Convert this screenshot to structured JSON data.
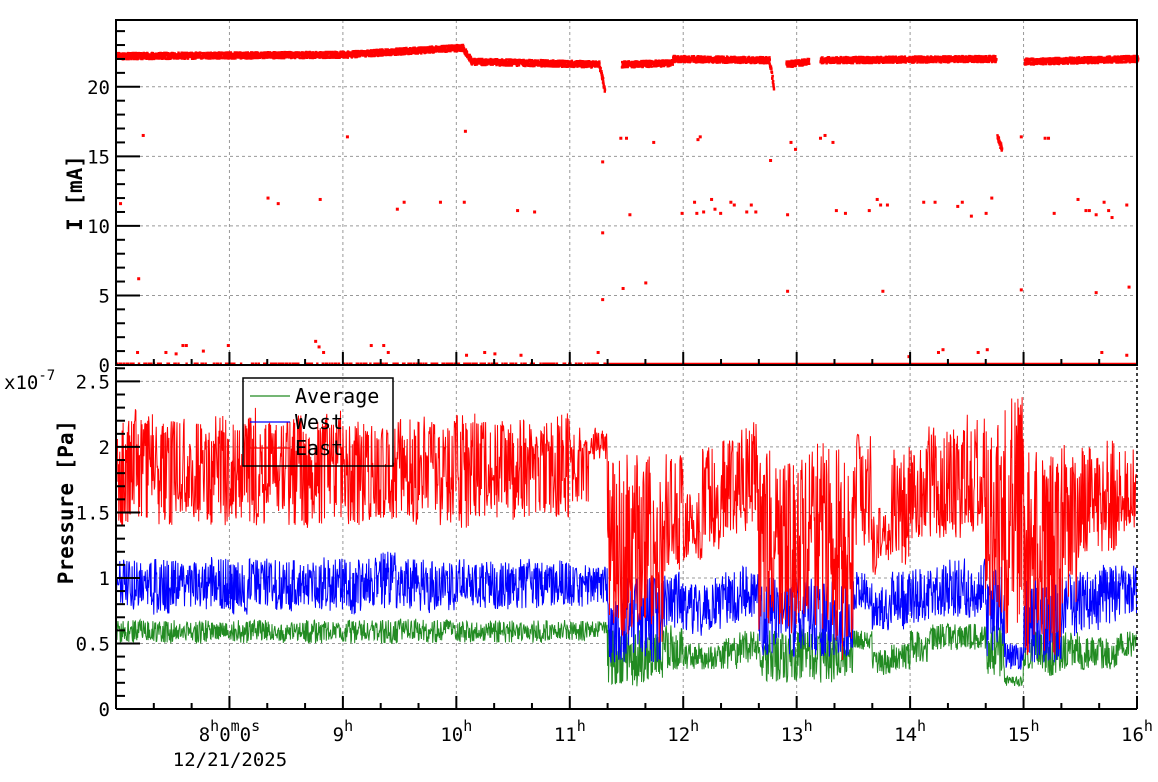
{
  "chart_data": [
    {
      "panel": "top",
      "type": "scatter",
      "ylabel": "I [mA]",
      "xlim_hours": [
        7,
        16
      ],
      "ylim": [
        0,
        24.8
      ],
      "yticks": [
        "0",
        "5",
        "10",
        "15",
        "20"
      ],
      "ytick_values": [
        0,
        5,
        10,
        15,
        20
      ],
      "grid": true,
      "color": "#ff0000",
      "main_segments": [
        [
          7.0,
          9.0,
          22.2,
          22.3
        ],
        [
          9.0,
          10.05,
          22.3,
          22.8
        ],
        [
          10.05,
          10.12,
          22.8,
          21.9
        ],
        [
          10.12,
          11.25,
          21.8,
          21.6
        ],
        [
          11.25,
          11.3,
          21.6,
          19.8
        ],
        [
          11.45,
          11.9,
          21.6,
          21.7
        ],
        [
          11.9,
          12.75,
          22.0,
          21.9
        ],
        [
          12.75,
          12.79,
          21.9,
          20.0
        ],
        [
          12.9,
          13.1,
          21.6,
          21.8
        ],
        [
          13.2,
          14.75,
          21.9,
          22.0
        ],
        [
          14.76,
          14.8,
          16.4,
          15.5
        ],
        [
          15.0,
          16.0,
          21.8,
          22.0
        ]
      ],
      "zero_segments": [
        [
          7.0,
          11.3,
          "sparse"
        ],
        [
          11.3,
          16.0,
          "dense"
        ]
      ],
      "points": [
        [
          7.04,
          11.6
        ],
        [
          7.2,
          6.2
        ],
        [
          7.24,
          16.5
        ],
        [
          8.34,
          12.0
        ],
        [
          8.43,
          11.6
        ],
        [
          8.8,
          11.9
        ],
        [
          9.04,
          16.4
        ],
        [
          9.48,
          11.2
        ],
        [
          9.54,
          11.7
        ],
        [
          9.86,
          11.7
        ],
        [
          10.07,
          11.7
        ],
        [
          10.08,
          16.8
        ],
        [
          10.54,
          11.1
        ],
        [
          10.69,
          11.0
        ],
        [
          11.29,
          14.6
        ],
        [
          11.29,
          9.5
        ],
        [
          11.29,
          4.7
        ],
        [
          11.45,
          16.3
        ],
        [
          11.5,
          16.3
        ],
        [
          11.53,
          10.8
        ],
        [
          11.47,
          5.5
        ],
        [
          11.67,
          5.9
        ],
        [
          11.74,
          16.0
        ],
        [
          11.99,
          10.9
        ],
        [
          12.1,
          11.7
        ],
        [
          12.13,
          16.2
        ],
        [
          12.15,
          16.4
        ],
        [
          12.12,
          10.9
        ],
        [
          12.18,
          11.0
        ],
        [
          12.25,
          11.9
        ],
        [
          12.28,
          11.2
        ],
        [
          12.33,
          10.9
        ],
        [
          12.42,
          11.7
        ],
        [
          12.45,
          11.5
        ],
        [
          12.56,
          11.0
        ],
        [
          12.6,
          11.5
        ],
        [
          12.64,
          11.0
        ],
        [
          12.77,
          14.7
        ],
        [
          12.92,
          10.8
        ],
        [
          12.92,
          5.3
        ],
        [
          12.95,
          16.0
        ],
        [
          12.99,
          15.5
        ],
        [
          13.21,
          16.3
        ],
        [
          13.25,
          16.5
        ],
        [
          13.32,
          16.0
        ],
        [
          13.35,
          11.1
        ],
        [
          13.43,
          10.9
        ],
        [
          13.64,
          11.1
        ],
        [
          13.71,
          11.9
        ],
        [
          13.74,
          11.5
        ],
        [
          13.76,
          5.3
        ],
        [
          13.8,
          11.5
        ],
        [
          14.12,
          11.7
        ],
        [
          14.22,
          11.7
        ],
        [
          14.42,
          11.4
        ],
        [
          14.46,
          11.7
        ],
        [
          14.54,
          10.7
        ],
        [
          14.67,
          10.9
        ],
        [
          14.72,
          12.0
        ],
        [
          14.98,
          5.4
        ],
        [
          14.98,
          16.4
        ],
        [
          15.19,
          16.3
        ],
        [
          15.22,
          16.3
        ],
        [
          15.27,
          10.9
        ],
        [
          15.48,
          11.9
        ],
        [
          15.55,
          11.1
        ],
        [
          15.58,
          11.1
        ],
        [
          15.64,
          10.8
        ],
        [
          15.64,
          5.2
        ],
        [
          15.71,
          11.7
        ],
        [
          15.75,
          11.1
        ],
        [
          15.78,
          10.6
        ],
        [
          15.91,
          11.5
        ],
        [
          15.93,
          5.6
        ],
        [
          7.19,
          0.9
        ],
        [
          7.44,
          0.9
        ],
        [
          7.53,
          0.8
        ],
        [
          7.59,
          1.4
        ],
        [
          7.62,
          1.4
        ],
        [
          7.77,
          1.0
        ],
        [
          7.99,
          1.4
        ],
        [
          8.76,
          1.7
        ],
        [
          8.79,
          1.3
        ],
        [
          8.83,
          0.9
        ],
        [
          9.25,
          1.4
        ],
        [
          9.36,
          1.4
        ],
        [
          9.4,
          0.9
        ],
        [
          10.09,
          0.7
        ],
        [
          10.25,
          0.9
        ],
        [
          10.34,
          0.8
        ],
        [
          10.57,
          0.7
        ],
        [
          11.25,
          0.9
        ],
        [
          13.99,
          0.6
        ],
        [
          14.25,
          0.9
        ],
        [
          14.29,
          1.1
        ],
        [
          14.6,
          0.9
        ],
        [
          14.68,
          1.1
        ],
        [
          15.69,
          0.9
        ],
        [
          15.91,
          0.7
        ]
      ]
    },
    {
      "panel": "bottom",
      "type": "line",
      "ylabel": "Pressure [Pa]",
      "y_multiplier": "x10",
      "y_exponent": "-7",
      "xlim_hours": [
        7,
        16
      ],
      "ylim": [
        0,
        2.61
      ],
      "yticks": [
        "0",
        "0.5",
        "1",
        "1.5",
        "2",
        "2.5"
      ],
      "ytick_values": [
        0,
        0.5,
        1,
        1.5,
        2,
        2.5
      ],
      "xticks": [
        "8h0m0s",
        "9h",
        "10h",
        "11h",
        "12h",
        "13h",
        "14h",
        "15h",
        "16h"
      ],
      "xtick_hours": [
        8,
        9,
        10,
        11,
        12,
        13,
        14,
        15,
        16
      ],
      "xdate": "12/21/2025",
      "grid": true,
      "legend_position": "top-left",
      "bin_minutes": 10,
      "series": [
        {
          "name": "Average",
          "color": "#228b22",
          "ranges": [
            [
              0.5,
              0.68
            ],
            [
              0.52,
              0.68
            ],
            [
              0.5,
              0.67
            ],
            [
              0.52,
              0.68
            ],
            [
              0.5,
              0.68
            ],
            [
              0.53,
              0.67
            ],
            [
              0.5,
              0.68
            ],
            [
              0.52,
              0.68
            ],
            [
              0.5,
              0.67
            ],
            [
              0.52,
              0.68
            ],
            [
              0.5,
              0.68
            ],
            [
              0.52,
              0.67
            ],
            [
              0.5,
              0.68
            ],
            [
              0.52,
              0.68
            ],
            [
              0.5,
              0.68
            ],
            [
              0.53,
              0.69
            ],
            [
              0.5,
              0.68
            ],
            [
              0.52,
              0.68
            ],
            [
              0.5,
              0.67
            ],
            [
              0.52,
              0.68
            ],
            [
              0.5,
              0.68
            ],
            [
              0.52,
              0.67
            ],
            [
              0.5,
              0.68
            ],
            [
              0.53,
              0.68
            ],
            [
              0.52,
              0.67
            ],
            [
              0.55,
              0.67
            ],
            [
              0.19,
              0.62
            ],
            [
              0.17,
              0.6
            ],
            [
              0.22,
              0.6
            ],
            [
              0.3,
              0.65
            ],
            [
              0.3,
              0.5
            ],
            [
              0.3,
              0.5
            ],
            [
              0.3,
              0.55
            ],
            [
              0.35,
              0.6
            ],
            [
              0.21,
              0.6
            ],
            [
              0.2,
              0.6
            ],
            [
              0.22,
              0.65
            ],
            [
              0.2,
              0.6
            ],
            [
              0.25,
              0.55
            ],
            [
              0.45,
              0.6
            ],
            [
              0.25,
              0.45
            ],
            [
              0.3,
              0.5
            ],
            [
              0.35,
              0.6
            ],
            [
              0.45,
              0.65
            ],
            [
              0.45,
              0.65
            ],
            [
              0.45,
              0.65
            ],
            [
              0.25,
              0.65
            ],
            [
              0.17,
              0.25
            ],
            [
              0.3,
              0.6
            ],
            [
              0.25,
              0.6
            ],
            [
              0.3,
              0.6
            ],
            [
              0.3,
              0.55
            ],
            [
              0.3,
              0.55
            ],
            [
              0.4,
              0.6
            ]
          ]
        },
        {
          "name": "West",
          "color": "#0000ff",
          "ranges": [
            [
              0.75,
              1.15
            ],
            [
              0.78,
              1.12
            ],
            [
              0.72,
              1.15
            ],
            [
              0.78,
              1.14
            ],
            [
              0.75,
              1.12
            ],
            [
              0.76,
              1.16
            ],
            [
              0.72,
              1.12
            ],
            [
              0.78,
              1.15
            ],
            [
              0.75,
              1.14
            ],
            [
              0.73,
              1.15
            ],
            [
              0.76,
              1.12
            ],
            [
              0.75,
              1.17
            ],
            [
              0.72,
              1.15
            ],
            [
              0.78,
              1.16
            ],
            [
              0.75,
              1.2
            ],
            [
              0.76,
              1.15
            ],
            [
              0.73,
              1.14
            ],
            [
              0.75,
              1.12
            ],
            [
              0.78,
              1.15
            ],
            [
              0.74,
              1.13
            ],
            [
              0.76,
              1.12
            ],
            [
              0.75,
              1.15
            ],
            [
              0.77,
              1.12
            ],
            [
              0.78,
              1.14
            ],
            [
              0.78,
              1.1
            ],
            [
              0.8,
              1.1
            ],
            [
              0.35,
              0.9
            ],
            [
              0.4,
              1.0
            ],
            [
              0.35,
              1.0
            ],
            [
              0.6,
              1.05
            ],
            [
              0.55,
              0.95
            ],
            [
              0.6,
              1.0
            ],
            [
              0.65,
              1.05
            ],
            [
              0.7,
              1.1
            ],
            [
              0.4,
              1.0
            ],
            [
              0.4,
              0.95
            ],
            [
              0.45,
              1.0
            ],
            [
              0.4,
              1.0
            ],
            [
              0.4,
              0.95
            ],
            [
              0.75,
              1.05
            ],
            [
              0.6,
              0.95
            ],
            [
              0.6,
              1.05
            ],
            [
              0.65,
              1.1
            ],
            [
              0.7,
              1.1
            ],
            [
              0.7,
              1.15
            ],
            [
              0.7,
              1.15
            ],
            [
              0.4,
              1.1
            ],
            [
              0.3,
              0.5
            ],
            [
              0.35,
              1.0
            ],
            [
              0.35,
              1.0
            ],
            [
              0.55,
              1.05
            ],
            [
              0.6,
              1.05
            ],
            [
              0.65,
              1.1
            ],
            [
              0.7,
              1.1
            ]
          ]
        },
        {
          "name": "East",
          "color": "#ff0000",
          "ranges": [
            [
              1.4,
              2.2
            ],
            [
              1.45,
              2.3
            ],
            [
              1.4,
              2.2
            ],
            [
              1.5,
              2.25
            ],
            [
              1.4,
              2.2
            ],
            [
              1.38,
              2.25
            ],
            [
              1.45,
              2.2
            ],
            [
              1.4,
              2.3
            ],
            [
              1.5,
              2.2
            ],
            [
              1.4,
              2.25
            ],
            [
              1.38,
              2.2
            ],
            [
              1.45,
              2.28
            ],
            [
              1.4,
              2.2
            ],
            [
              1.42,
              2.25
            ],
            [
              1.45,
              2.2
            ],
            [
              1.4,
              2.22
            ],
            [
              1.5,
              2.25
            ],
            [
              1.4,
              2.2
            ],
            [
              1.38,
              2.26
            ],
            [
              1.45,
              2.2
            ],
            [
              1.45,
              2.2
            ],
            [
              1.42,
              2.22
            ],
            [
              1.5,
              2.2
            ],
            [
              1.45,
              2.26
            ],
            [
              1.55,
              2.15
            ],
            [
              1.9,
              2.15
            ],
            [
              0.55,
              1.9
            ],
            [
              0.55,
              1.95
            ],
            [
              0.45,
              1.95
            ],
            [
              1.05,
              1.95
            ],
            [
              1.05,
              1.65
            ],
            [
              1.2,
              2.0
            ],
            [
              1.3,
              2.05
            ],
            [
              1.35,
              2.2
            ],
            [
              0.6,
              2.0
            ],
            [
              0.55,
              1.95
            ],
            [
              0.7,
              2.0
            ],
            [
              0.6,
              2.05
            ],
            [
              0.35,
              2.0
            ],
            [
              1.2,
              2.1
            ],
            [
              1.0,
              1.55
            ],
            [
              1.1,
              2.0
            ],
            [
              1.25,
              2.05
            ],
            [
              1.3,
              2.2
            ],
            [
              1.3,
              2.15
            ],
            [
              1.35,
              2.25
            ],
            [
              0.7,
              2.2
            ],
            [
              0.55,
              2.45
            ],
            [
              0.4,
              2.0
            ],
            [
              0.4,
              2.0
            ],
            [
              0.8,
              2.05
            ],
            [
              1.2,
              2.0
            ],
            [
              1.2,
              2.05
            ],
            [
              1.35,
              2.0
            ]
          ]
        }
      ]
    }
  ]
}
